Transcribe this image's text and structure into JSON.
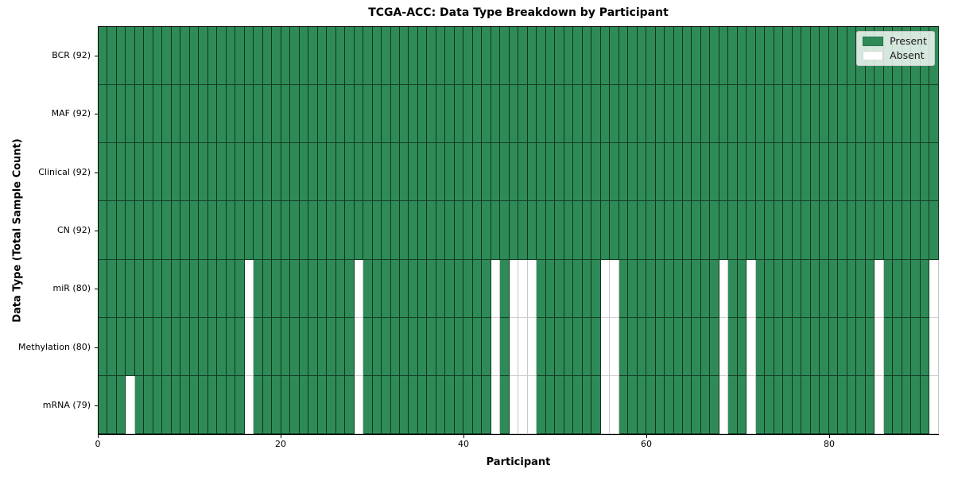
{
  "chart_data": {
    "type": "heatmap",
    "title": "TCGA-ACC: Data Type Breakdown by Participant",
    "xlabel": "Participant",
    "ylabel": "Data Type (Total Sample Count)",
    "x_ticks": [
      0,
      20,
      40,
      60,
      80
    ],
    "x_range": [
      0,
      92
    ],
    "n_participants": 92,
    "grid": "cell-borders-on",
    "legend_position": "upper-right-inside",
    "rows": [
      {
        "label": "BCR (92)",
        "data_type": "BCR",
        "present_count": 92,
        "absent_participants": []
      },
      {
        "label": "MAF (92)",
        "data_type": "MAF",
        "present_count": 92,
        "absent_participants": []
      },
      {
        "label": "Clinical (92)",
        "data_type": "Clinical",
        "present_count": 92,
        "absent_participants": []
      },
      {
        "label": "CN (92)",
        "data_type": "CN",
        "present_count": 92,
        "absent_participants": []
      },
      {
        "label": "miR (80)",
        "data_type": "miR",
        "present_count": 80,
        "absent_participants": [
          16,
          28,
          43,
          45,
          46,
          47,
          55,
          56,
          68,
          71,
          85,
          91
        ]
      },
      {
        "label": "Methylation (80)",
        "data_type": "Methylation",
        "present_count": 80,
        "absent_participants": [
          16,
          28,
          43,
          45,
          46,
          47,
          55,
          56,
          68,
          71,
          85,
          91
        ]
      },
      {
        "label": "mRNA (79)",
        "data_type": "mRNA",
        "present_count": 79,
        "absent_participants": [
          3,
          16,
          28,
          43,
          45,
          46,
          47,
          55,
          56,
          68,
          71,
          85,
          91
        ]
      }
    ],
    "legend": [
      {
        "label": "Present",
        "color": "#2e8b57"
      },
      {
        "label": "Absent",
        "color": "#ffffff"
      }
    ],
    "colors": {
      "present": "#2e8b57",
      "absent": "#ffffff",
      "present_edge": "#1f1f1f",
      "absent_edge": "#c9c9c9",
      "axis": "#000000"
    }
  }
}
